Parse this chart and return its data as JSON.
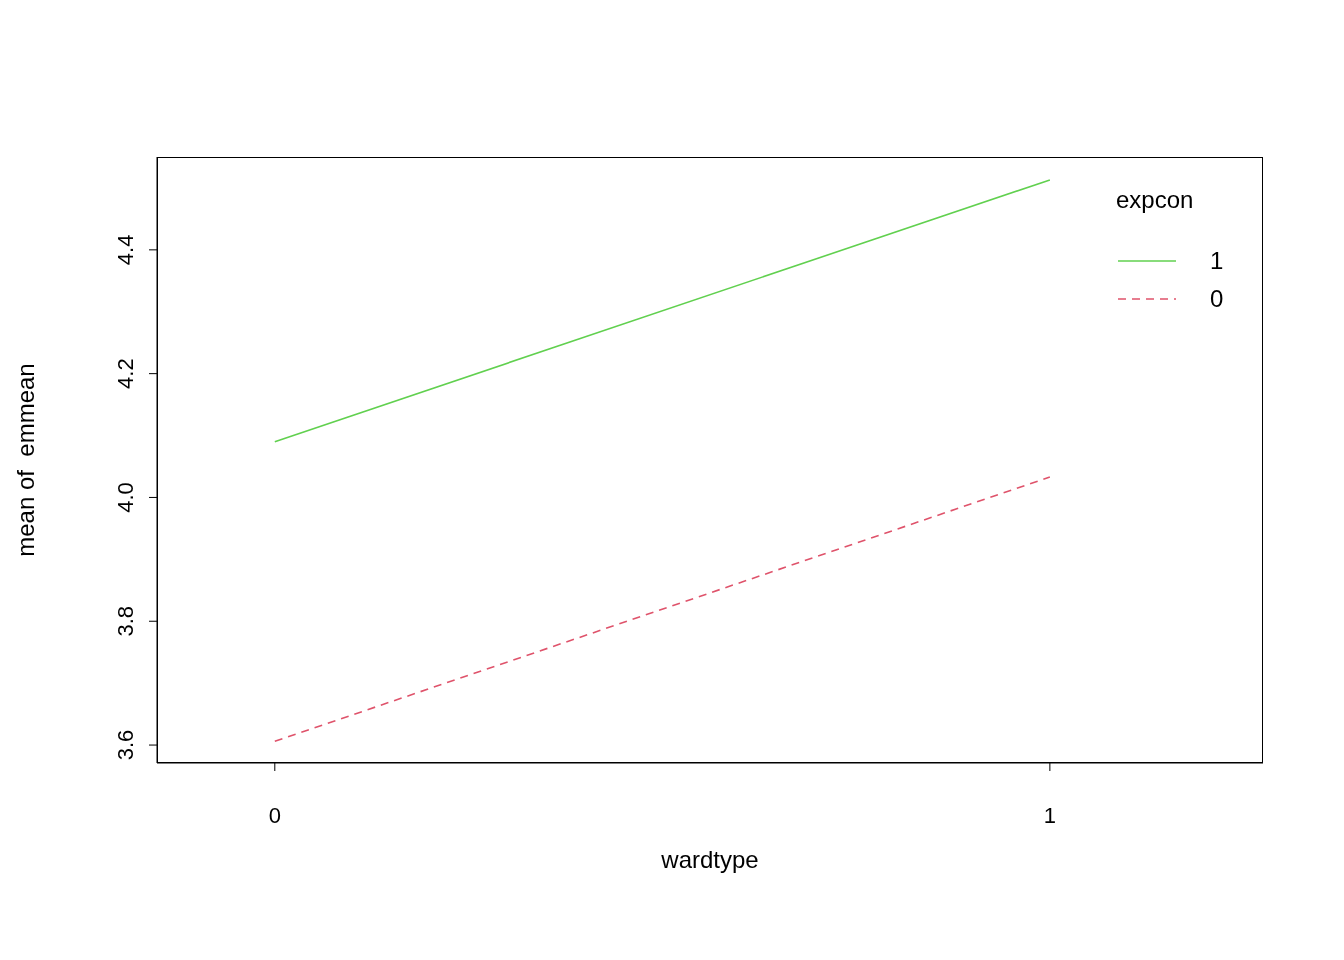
{
  "chart_data": {
    "type": "line",
    "xlabel": "wardtype",
    "ylabel": "mean of  emmean",
    "legend_title": "expcon",
    "legend": "top right",
    "marker": "none",
    "x": [
      0,
      1
    ],
    "xlim": [
      -0.152,
      1.275
    ],
    "xticks": [
      0,
      1
    ],
    "ylim": [
      3.571,
      4.55
    ],
    "yticks": [
      3.6,
      3.8,
      {
        "value": 4.0,
        "label": "4.0"
      },
      4.2,
      4.4
    ],
    "series": [
      {
        "name": "1",
        "color": "#61d04f",
        "line_style": "solid",
        "values": [
          4.09,
          4.513
        ]
      },
      {
        "name": "0",
        "color": "#df536b",
        "line_style": "dashed",
        "values": [
          3.606,
          4.033
        ]
      }
    ]
  }
}
